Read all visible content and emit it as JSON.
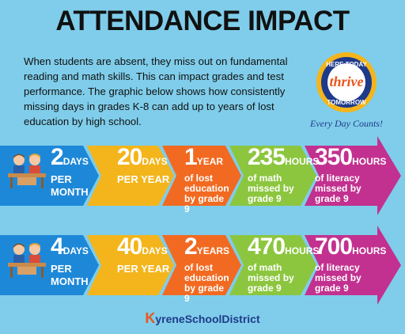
{
  "title": "ATTENDANCE IMPACT",
  "intro": "When students are absent, they miss out on fundamental reading and math skills. This can impact grades and test performance. The graphic below shows how consistently missing days in grades K-8 can add up to years of lost education by high school.",
  "badge": {
    "top_text": "HERE TODAY",
    "script_text": "thrive",
    "bottom_text": "TOMORROW",
    "tagline": "Every Day Counts!"
  },
  "rows": [
    {
      "days_per_month": {
        "num": "2",
        "unit": "DAYS",
        "sub": "PER MONTH"
      },
      "days_per_year": {
        "num": "20",
        "unit": "DAYS",
        "sub": "PER YEAR"
      },
      "years_lost": {
        "num": "1",
        "unit": "YEAR",
        "l1": "of lost",
        "l2": "education",
        "l3": "by grade 9"
      },
      "math_hours": {
        "num": "235",
        "unit": "HOURS",
        "l1": "of math",
        "l2": "missed by",
        "l3": "grade 9"
      },
      "literacy_hours": {
        "num": "350",
        "unit": "HOURS",
        "l1": "of literacy",
        "l2": "missed by",
        "l3": "grade 9"
      }
    },
    {
      "days_per_month": {
        "num": "4",
        "unit": "DAYS",
        "sub": "PER MONTH"
      },
      "days_per_year": {
        "num": "40",
        "unit": "DAYS",
        "sub": "PER YEAR"
      },
      "years_lost": {
        "num": "2",
        "unit": "YEARS",
        "l1": "of lost",
        "l2": "education",
        "l3": "by grade 9"
      },
      "math_hours": {
        "num": "470",
        "unit": "HOURS",
        "l1": "of math",
        "l2": "missed by",
        "l3": "grade 9"
      },
      "literacy_hours": {
        "num": "700",
        "unit": "HOURS",
        "l1": "of literacy",
        "l2": "missed by",
        "l3": "grade 9"
      }
    }
  ],
  "footer": {
    "k": "K",
    "name": "yreneSchoolDistrict"
  },
  "colors": {
    "background": "#7fcdea",
    "blue": "#1e88d8",
    "yellow": "#f3b51b",
    "orange": "#f26a21",
    "green": "#8cc63f",
    "magenta": "#c2318f"
  }
}
